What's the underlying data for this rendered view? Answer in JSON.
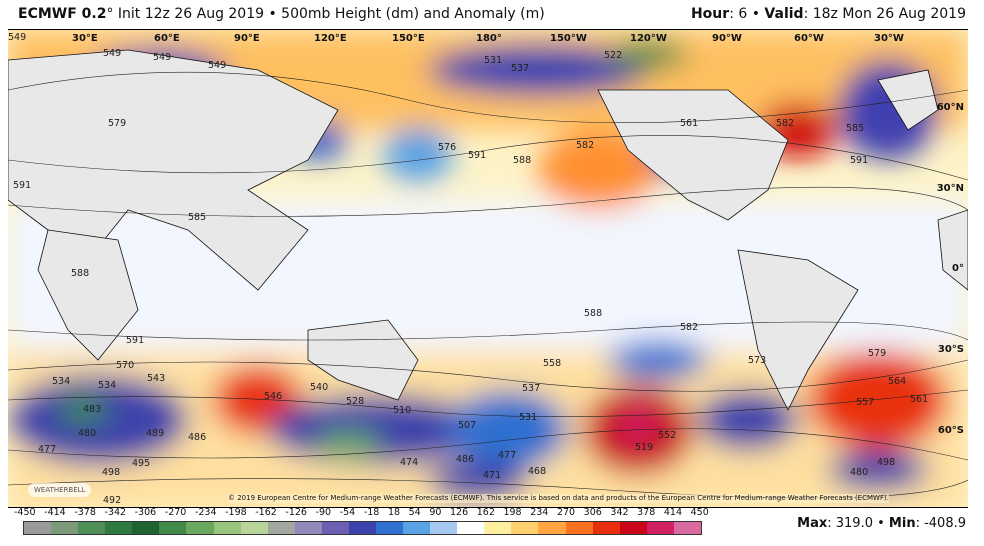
{
  "header": {
    "model": "ECMWF 0.2",
    "deg": "°",
    "init": " Init 12z 26 Aug 2019 • 500mb Height (dm) and Anomaly (m)",
    "hour_label": "Hour",
    "hour": ": 6 • ",
    "valid_label": "Valid",
    "valid": ": 18z Mon 26 Aug 2019"
  },
  "longitudes": [
    "30°E",
    "60°E",
    "90°E",
    "120°E",
    "150°E",
    "180°",
    "150°W",
    "120°W",
    "90°W",
    "60°W",
    "30°W"
  ],
  "latitudes": [
    "60°N",
    "30°N",
    "0°",
    "30°S",
    "60°S"
  ],
  "contour_labels": [
    "549",
    "549",
    "579",
    "591",
    "585",
    "576",
    "591",
    "588",
    "582",
    "531",
    "537",
    "522",
    "561",
    "582",
    "591",
    "585",
    "588",
    "588",
    "591",
    "558",
    "582",
    "573",
    "579",
    "534",
    "543",
    "570",
    "540",
    "528",
    "510",
    "507",
    "537",
    "531",
    "519",
    "552",
    "546",
    "564",
    "561",
    "557",
    "483",
    "480",
    "477",
    "486",
    "489",
    "498",
    "495",
    "492",
    "474",
    "471",
    "468",
    "477",
    "486",
    "498",
    "480",
    "549",
    "549",
    "534"
  ],
  "copyright": "© 2019 European Centre for Medium-range Weather Forecasts (ECMWF). This service is based on data and products of the European Centre for Medium-range Weather Forecasts (ECMWF).",
  "logo": "WEATHERBELL",
  "colorbar": {
    "ticks": [
      "-450",
      "-414",
      "-378",
      "-342",
      "-306",
      "-270",
      "-234",
      "-198",
      "-162",
      "-126",
      "-90",
      "-54",
      "-18",
      "18",
      "54",
      "90",
      "126",
      "162",
      "198",
      "234",
      "270",
      "306",
      "342",
      "378",
      "414",
      "450"
    ],
    "colors": [
      "#9a9a9a",
      "#7a9a7a",
      "#4f8f55",
      "#2f7a40",
      "#1f6433",
      "#3f8a48",
      "#6aa860",
      "#98c47e",
      "#b9d49a",
      "#a3a8a0",
      "#8f8aba",
      "#6a5fb0",
      "#3c43aa",
      "#2f6fd0",
      "#5aa2e6",
      "#a5c9f0",
      "#ffffff",
      "#fff0a0",
      "#ffd070",
      "#ffa640",
      "#ff7020",
      "#e83010",
      "#c80818",
      "#d02060",
      "#d86aa0"
    ],
    "extra_color": "#c8a0c8"
  },
  "stats": {
    "max_label": "Max",
    "max": ": 319.0 • ",
    "min_label": "Min",
    "min": ": -408.9"
  }
}
